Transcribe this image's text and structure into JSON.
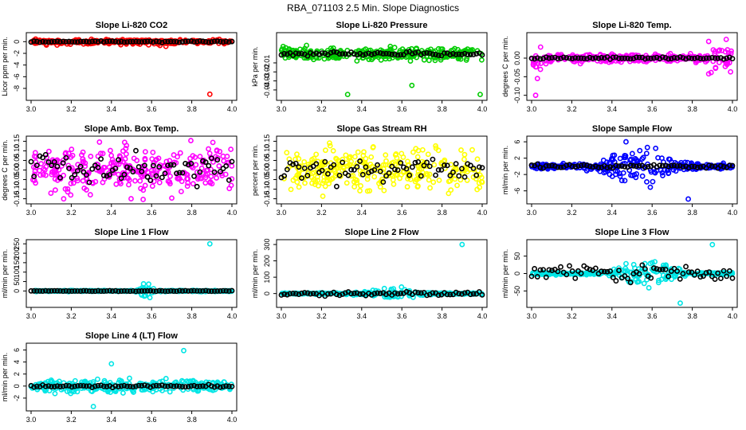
{
  "figure_title": "RBA_071103  2.5 Min. Slope Diagnostics",
  "colors": {
    "black": "#000000",
    "red": "#ff0000",
    "green": "#00cc00",
    "magenta": "#ff00ff",
    "yellow": "#ffff00",
    "blue": "#0000ff",
    "cyan": "#00e5e5"
  },
  "chart_data": [
    {
      "type": "scatter",
      "title": "Slope Li-820 CO2",
      "xlabel": "",
      "ylabel": "Licor ppm per min.",
      "xlim": [
        3.0,
        4.0
      ],
      "ylim": [
        -9.5,
        1.0
      ],
      "xticks": [
        "3.0",
        "3.2",
        "3.4",
        "3.6",
        "3.8",
        "4.0"
      ],
      "yticks": [
        {
          "v": 0,
          "label": "0"
        },
        {
          "v": -2,
          "label": "-2"
        },
        {
          "v": -4,
          "label": "-4"
        },
        {
          "v": -6,
          "label": "-6"
        },
        {
          "v": -8,
          "label": "-8"
        }
      ],
      "color": "red",
      "spread": 0.35,
      "spike_center": null,
      "spike_width": 0,
      "spike_amp": 0,
      "black_spread": 0.12,
      "seed": 11,
      "outliers": [
        {
          "x": 3.89,
          "y": -9.0
        }
      ],
      "legend": "none"
    },
    {
      "type": "scatter",
      "title": "Slope Li-820 Pressure",
      "xlabel": "",
      "ylabel": "kPa per min.",
      "xlim": [
        3.0,
        4.0
      ],
      "ylim": [
        -0.048,
        0.02
      ],
      "xticks": [
        "3.0",
        "3.2",
        "3.4",
        "3.6",
        "3.8",
        "4.0"
      ],
      "yticks": [
        {
          "v": -0.01,
          "label": "-0.01"
        },
        {
          "v": -0.02,
          "label": "-0.02"
        },
        {
          "v": -0.03,
          "label": "-0.03"
        },
        {
          "v": -0.04,
          "label": "-0.04"
        }
      ],
      "color": "green",
      "spread": 0.007,
      "spike_center": null,
      "spike_width": 0,
      "spike_amp": 0,
      "black_spread": 0.002,
      "seed": 23,
      "outliers": [
        {
          "x": 3.33,
          "y": -0.045
        },
        {
          "x": 3.65,
          "y": -0.035
        },
        {
          "x": 3.99,
          "y": -0.045
        }
      ],
      "legend": "none"
    },
    {
      "type": "scatter",
      "title": "Slope Li-820 Temp.",
      "xlabel": "",
      "ylabel": "degrees C per min.",
      "xlim": [
        3.0,
        4.0
      ],
      "ylim": [
        -0.105,
        0.06
      ],
      "xticks": [
        "3.0",
        "3.2",
        "3.4",
        "3.6",
        "3.8",
        "4.0"
      ],
      "yticks": [
        {
          "v": 0,
          "label": "0.00"
        },
        {
          "v": -0.05,
          "label": "-0.05"
        },
        {
          "v": -0.1,
          "label": "-0.10"
        }
      ],
      "color": "magenta",
      "spread": 0.01,
      "spike_center": null,
      "spike_width": 0,
      "spike_amp": 0,
      "black_spread": 0.003,
      "seed": 37,
      "edge_spread": 0.05,
      "outliers": [
        {
          "x": 3.02,
          "y": -0.1
        }
      ],
      "legend": "none"
    },
    {
      "type": "scatter",
      "title": "Slope Amb. Box Temp.",
      "xlabel": "",
      "ylabel": "degrees C per min.",
      "xlim": [
        3.0,
        4.0
      ],
      "ylim": [
        -0.16,
        0.16
      ],
      "xticks": [
        "3.0",
        "3.2",
        "3.4",
        "3.6",
        "3.8",
        "4.0"
      ],
      "yticks": [
        {
          "v": 0.15,
          "label": "0.15"
        },
        {
          "v": 0.1,
          "label": "0.10"
        },
        {
          "v": 0.05,
          "label": "0.05"
        },
        {
          "v": 0,
          "label": "0.00"
        },
        {
          "v": -0.05,
          "label": "-0.05"
        },
        {
          "v": -0.1,
          "label": "-0.10"
        },
        {
          "v": -0.15,
          "label": "-0.15"
        }
      ],
      "color": "magenta",
      "spread": 0.12,
      "spike_center": null,
      "spike_width": 0,
      "spike_amp": 0,
      "black_spread": 0.08,
      "seed": 41,
      "outliers": [],
      "legend": "none"
    },
    {
      "type": "scatter",
      "title": "Slope Gas Stream RH",
      "xlabel": "",
      "ylabel": "percent per min.",
      "xlim": [
        3.0,
        4.0
      ],
      "ylim": [
        -0.16,
        0.16
      ],
      "xticks": [
        "3.0",
        "3.2",
        "3.4",
        "3.6",
        "3.8",
        "4.0"
      ],
      "yticks": [
        {
          "v": 0.15,
          "label": "0.15"
        },
        {
          "v": 0.1,
          "label": "0.10"
        },
        {
          "v": 0.05,
          "label": "0.05"
        },
        {
          "v": 0,
          "label": "0.00"
        },
        {
          "v": -0.05,
          "label": "-0.05"
        },
        {
          "v": -0.1,
          "label": "-0.10"
        },
        {
          "v": -0.15,
          "label": "-0.15"
        }
      ],
      "color": "yellow",
      "spread": 0.11,
      "spike_center": null,
      "spike_width": 0,
      "spike_amp": 0,
      "black_spread": 0.06,
      "seed": 53,
      "outliers": [],
      "legend": "none"
    },
    {
      "type": "scatter",
      "title": "Slope Sample Flow",
      "xlabel": "",
      "ylabel": "ml/min per min.",
      "xlim": [
        3.0,
        4.0
      ],
      "ylim": [
        -8.4,
        6.6
      ],
      "xticks": [
        "3.0",
        "3.2",
        "3.4",
        "3.6",
        "3.8",
        "4.0"
      ],
      "yticks": [
        {
          "v": 6,
          "label": "6"
        },
        {
          "v": 2,
          "label": "2"
        },
        {
          "v": -2,
          "label": "-2"
        },
        {
          "v": -6,
          "label": "-6"
        }
      ],
      "color": "blue",
      "spread": 0.6,
      "spike_center": 3.55,
      "spike_width": 0.15,
      "spike_amp": 4.5,
      "black_spread": 0.5,
      "seed": 67,
      "outliers": [
        {
          "x": 3.47,
          "y": 6.0
        },
        {
          "x": 3.78,
          "y": -8.0
        }
      ],
      "legend": "none"
    },
    {
      "type": "scatter",
      "title": "Slope Line 1 Flow",
      "xlabel": "",
      "ylabel": "ml/min per min.",
      "xlim": [
        3.0,
        4.0
      ],
      "ylim": [
        -70,
        255
      ],
      "xticks": [
        "3.0",
        "3.2",
        "3.4",
        "3.6",
        "3.8",
        "4.0"
      ],
      "yticks": [
        {
          "v": 250,
          "label": "250"
        },
        {
          "v": 200,
          "label": "200"
        },
        {
          "v": 150,
          "label": "150"
        },
        {
          "v": 100,
          "label": "100"
        },
        {
          "v": 50,
          "label": "50"
        },
        {
          "v": 0,
          "label": "0"
        }
      ],
      "color": "cyan",
      "spread": 3,
      "spike_center": 3.58,
      "spike_width": 0.035,
      "spike_amp": 40,
      "black_spread": 2,
      "seed": 79,
      "outliers": [
        {
          "x": 3.89,
          "y": 250
        }
      ],
      "legend": "none"
    },
    {
      "type": "scatter",
      "title": "Slope Line 2 Flow",
      "xlabel": "",
      "ylabel": "ml/min per min.",
      "xlim": [
        3.0,
        4.0
      ],
      "ylim": [
        -65,
        310
      ],
      "xticks": [
        "3.0",
        "3.2",
        "3.4",
        "3.6",
        "3.8",
        "4.0"
      ],
      "yticks": [
        {
          "v": 300,
          "label": "300"
        },
        {
          "v": 200,
          "label": "200"
        },
        {
          "v": 100,
          "label": "100"
        },
        {
          "v": 0,
          "label": "0"
        }
      ],
      "color": "cyan",
      "spread": 4,
      "spike_center": 3.55,
      "spike_width": 0.13,
      "spike_amp": 30,
      "black_spread": 12,
      "seed": 83,
      "outliers": [
        {
          "x": 3.9,
          "y": 300
        }
      ],
      "legend": "none"
    },
    {
      "type": "scatter",
      "title": "Slope Line 3 Flow",
      "xlabel": "",
      "ylabel": "ml/min per min.",
      "xlim": [
        3.0,
        4.0
      ],
      "ylim": [
        -88,
        88
      ],
      "xticks": [
        "3.0",
        "3.2",
        "3.4",
        "3.6",
        "3.8",
        "4.0"
      ],
      "yticks": [
        {
          "v": 50,
          "label": "50"
        },
        {
          "v": 0,
          "label": "0"
        },
        {
          "v": -50,
          "label": "-50"
        }
      ],
      "color": "cyan",
      "spread": 3,
      "spike_center": 3.58,
      "spike_width": 0.13,
      "spike_amp": 38,
      "black_spread": 25,
      "seed": 97,
      "outliers": [
        {
          "x": 3.74,
          "y": -85
        },
        {
          "x": 3.9,
          "y": 83
        }
      ],
      "legend": "none"
    },
    {
      "type": "scatter",
      "title": "Slope Line 4 (LT) Flow",
      "xlabel": "",
      "ylabel": "ml/min per min.",
      "xlim": [
        3.0,
        4.0
      ],
      "ylim": [
        -3.6,
        6.6
      ],
      "xticks": [
        "3.0",
        "3.2",
        "3.4",
        "3.6",
        "3.8",
        "4.0"
      ],
      "yticks": [
        {
          "v": 6,
          "label": "6"
        },
        {
          "v": 4,
          "label": "4"
        },
        {
          "v": 2,
          "label": "2"
        },
        {
          "v": 0,
          "label": "0"
        },
        {
          "v": -2,
          "label": "-2"
        }
      ],
      "color": "cyan",
      "spread": 1.0,
      "spike_center": null,
      "spike_width": 0,
      "spike_amp": 0,
      "black_spread": 0.2,
      "seed": 101,
      "outliers": [
        {
          "x": 3.76,
          "y": 5.9
        },
        {
          "x": 3.4,
          "y": 3.7
        },
        {
          "x": 3.31,
          "y": -3.4
        },
        {
          "x": 3.49,
          "y": 1.3
        }
      ],
      "legend": "none"
    }
  ]
}
